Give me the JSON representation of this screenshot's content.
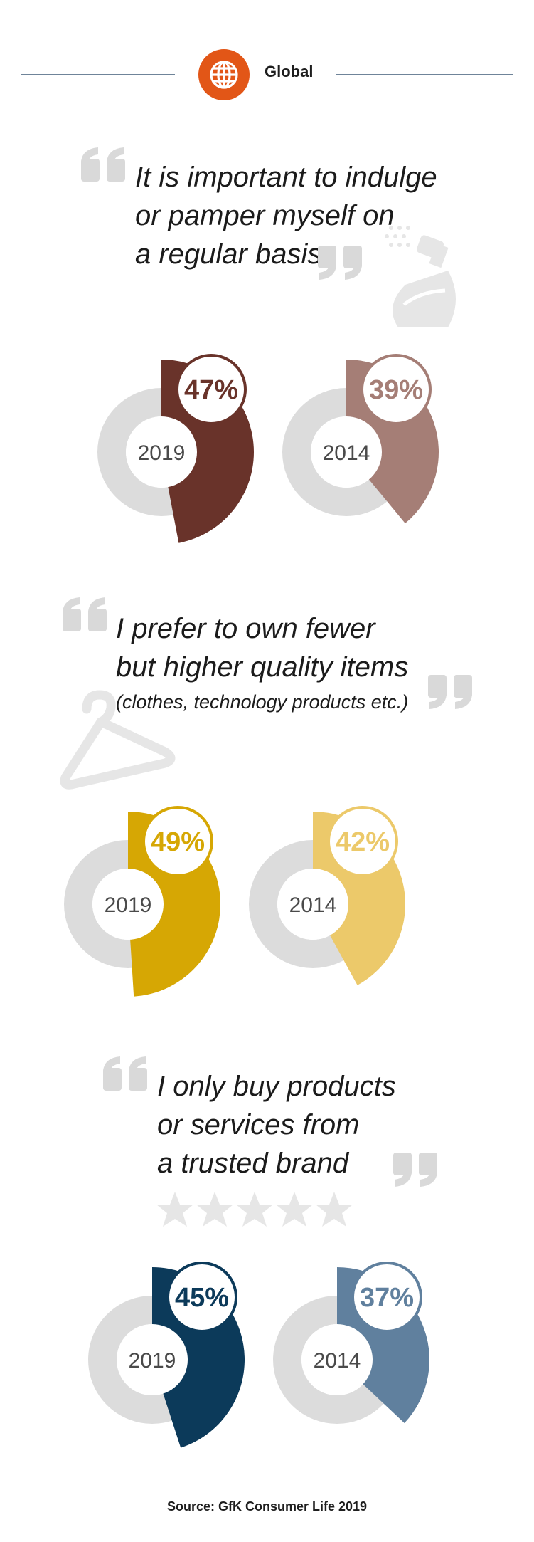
{
  "header": {
    "region_label": "Global",
    "icon": "globe-icon",
    "accent_color": "#e25617",
    "rule_color": "#6f8499"
  },
  "sections": [
    {
      "statement_lines": [
        "It is important to indulge",
        "or pamper myself on",
        "a regular basis"
      ],
      "statement_sub": "",
      "decoration_icon": "perfume-bottle-icon"
    },
    {
      "statement_lines": [
        "I prefer to own fewer",
        "but higher quality items"
      ],
      "statement_sub": "(clothes, technology products etc.)",
      "decoration_icon": "clothes-hanger-icon"
    },
    {
      "statement_lines": [
        "I only buy products",
        "or services from",
        "a trusted brand"
      ],
      "statement_sub": "",
      "decoration_icon": "five-stars-icon"
    }
  ],
  "chart_data": [
    {
      "type": "pie",
      "statement": "It is important to indulge or pamper myself on a regular basis",
      "slices": [
        {
          "label": "2019",
          "value": 47,
          "value_label": "47%",
          "color": "#69332a"
        },
        {
          "label": "2014",
          "value": 39,
          "value_label": "39%",
          "color": "#a57e76"
        }
      ]
    },
    {
      "type": "pie",
      "statement": "I prefer to own fewer but higher quality items (clothes, technology products etc.)",
      "slices": [
        {
          "label": "2019",
          "value": 49,
          "value_label": "49%",
          "color": "#d6a704"
        },
        {
          "label": "2014",
          "value": 42,
          "value_label": "42%",
          "color": "#ecc96a"
        }
      ]
    },
    {
      "type": "pie",
      "statement": "I only buy products or services from a trusted brand",
      "slices": [
        {
          "label": "2019",
          "value": 45,
          "value_label": "45%",
          "color": "#0c3a5a"
        },
        {
          "label": "2014",
          "value": 37,
          "value_label": "37%",
          "color": "#60809e"
        }
      ]
    }
  ],
  "colors": {
    "ring_grey": "#dcdcdc",
    "quote_mark_grey": "#d9d9d9",
    "decoration_grey": "#e6e6e6"
  },
  "footer": {
    "source": "Source: GfK Consumer Life 2019"
  }
}
